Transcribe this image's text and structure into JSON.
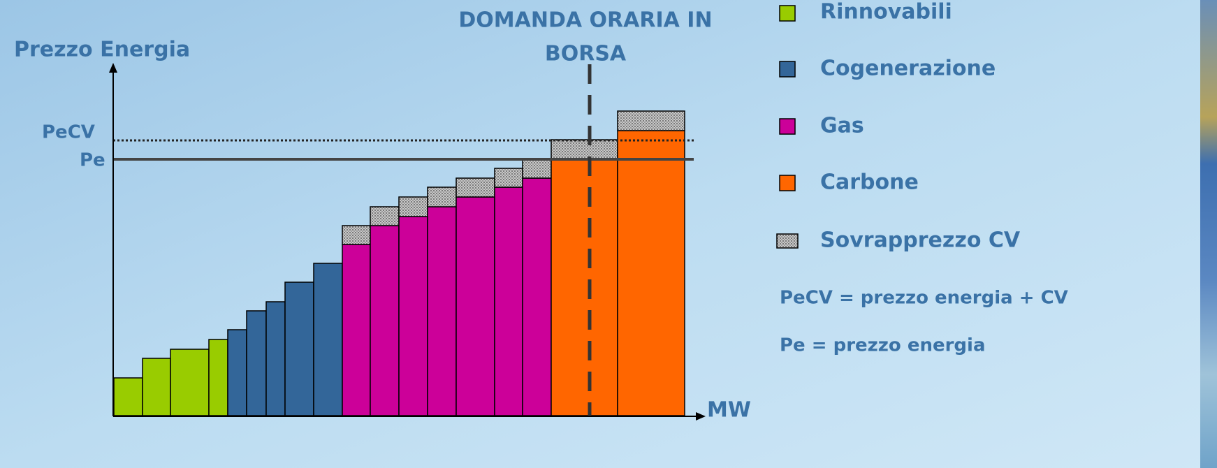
{
  "diagram": {
    "y_axis_label": "Prezzo Energia",
    "x_axis_label": "MW",
    "line_labels": {
      "pecv": "PeCV",
      "pe": "Pe"
    },
    "demand_label": [
      "DOMANDA ORARIA IN",
      "BORSA"
    ],
    "legend": [
      "Rinnovabili",
      "Cogenerazione",
      "Gas",
      "Carbone",
      "Sovrapprezzo CV"
    ],
    "notes": [
      "PeCV = prezzo energia + CV",
      "Pe = prezzo energia"
    ]
  }
}
